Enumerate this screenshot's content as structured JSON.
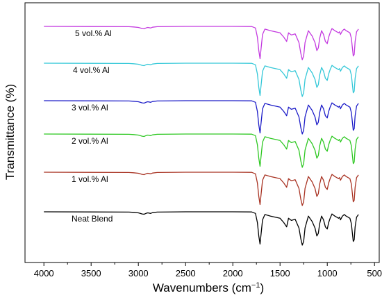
{
  "chart_data": {
    "type": "line",
    "title": "",
    "xlabel": "Wavenumbers (cm",
    "xlabel_superscript": "−1",
    "xlabel_suffix": ")",
    "ylabel": "Transmittance (%)",
    "xlim": [
      4200,
      450
    ],
    "x_reversed": true,
    "x_ticks": [
      4000,
      3500,
      3000,
      2500,
      2000,
      1500,
      1000,
      500
    ],
    "y_ticks_shown": false,
    "grid": false,
    "legend": "inline labels above each curve",
    "offset_between_series": 1,
    "x": [
      4000,
      3100,
      3050,
      3000,
      2980,
      2960,
      2940,
      2920,
      2900,
      2870,
      2850,
      2800,
      2500,
      2000,
      1800,
      1760,
      1740,
      1725,
      1712,
      1700,
      1685,
      1660,
      1600,
      1550,
      1500,
      1460,
      1430,
      1410,
      1380,
      1340,
      1300,
      1280,
      1265,
      1250,
      1235,
      1200,
      1160,
      1130,
      1110,
      1095,
      1080,
      1060,
      1040,
      1020,
      1000,
      985,
      970,
      950,
      920,
      900,
      880,
      870,
      860,
      840,
      820,
      800,
      780,
      760,
      745,
      735,
      725,
      715,
      705,
      690,
      670
    ],
    "series": [
      {
        "name": "Neat Blend",
        "color": "#000000",
        "values": [
          100,
          99.5,
          99,
          98,
          97,
          96,
          95.5,
          97,
          98,
          97,
          98.5,
          99.5,
          100,
          100,
          99.8,
          97,
          80,
          55,
          40,
          60,
          85,
          95,
          92,
          90,
          88,
          80,
          72,
          88,
          84,
          86,
          70,
          50,
          38,
          45,
          70,
          92,
          82,
          70,
          55,
          60,
          78,
          92,
          85,
          72,
          68,
          80,
          88,
          96,
          92,
          90,
          88,
          90,
          85,
          92,
          95,
          92,
          90,
          88,
          78,
          62,
          45,
          48,
          72,
          90,
          95
        ]
      },
      {
        "name": "1 vol.% Al",
        "color": "#a83222",
        "values": [
          100,
          99.5,
          99,
          98,
          97,
          96,
          95.5,
          97,
          98,
          97,
          98.5,
          99.5,
          100,
          100,
          99.8,
          97,
          80,
          55,
          40,
          60,
          85,
          95,
          92,
          90,
          88,
          80,
          72,
          88,
          84,
          86,
          70,
          50,
          38,
          45,
          70,
          92,
          82,
          70,
          55,
          60,
          78,
          92,
          85,
          72,
          68,
          80,
          88,
          96,
          92,
          90,
          88,
          90,
          85,
          92,
          95,
          92,
          90,
          88,
          78,
          62,
          45,
          48,
          72,
          90,
          95
        ]
      },
      {
        "name": "2 vol.% Al",
        "color": "#2ec822",
        "values": [
          100,
          99.5,
          99,
          98,
          97,
          96,
          95.5,
          97,
          98,
          97,
          98.5,
          99.5,
          100,
          100,
          99.8,
          97,
          80,
          55,
          40,
          60,
          85,
          95,
          92,
          90,
          88,
          80,
          72,
          88,
          84,
          86,
          70,
          50,
          38,
          45,
          70,
          92,
          82,
          70,
          55,
          60,
          78,
          92,
          85,
          72,
          68,
          80,
          88,
          96,
          92,
          90,
          88,
          90,
          85,
          92,
          95,
          92,
          90,
          88,
          78,
          62,
          45,
          48,
          72,
          90,
          95
        ]
      },
      {
        "name": "3 vol.% Al",
        "color": "#1c1cc8",
        "values": [
          100,
          99.5,
          99,
          98,
          97,
          96,
          95.5,
          97,
          98,
          97,
          98.5,
          99.5,
          100,
          100,
          99.8,
          97,
          80,
          55,
          40,
          60,
          85,
          95,
          92,
          90,
          88,
          80,
          72,
          88,
          84,
          86,
          70,
          50,
          38,
          45,
          70,
          92,
          82,
          70,
          55,
          60,
          78,
          92,
          85,
          72,
          68,
          80,
          88,
          96,
          92,
          90,
          88,
          90,
          85,
          92,
          95,
          92,
          90,
          88,
          78,
          62,
          45,
          48,
          72,
          90,
          95
        ]
      },
      {
        "name": "4 vol.% Al",
        "color": "#34c8d8",
        "values": [
          100,
          99.5,
          99,
          98,
          97,
          96,
          95.5,
          97,
          98,
          97,
          98.5,
          99.5,
          100,
          100,
          99.8,
          97,
          80,
          55,
          40,
          60,
          85,
          95,
          92,
          90,
          88,
          80,
          72,
          88,
          84,
          86,
          70,
          50,
          38,
          45,
          70,
          92,
          82,
          70,
          55,
          60,
          78,
          92,
          85,
          72,
          68,
          80,
          88,
          96,
          92,
          90,
          88,
          90,
          85,
          92,
          95,
          92,
          90,
          88,
          78,
          62,
          45,
          48,
          72,
          90,
          95
        ]
      },
      {
        "name": "5 vol.% Al",
        "color": "#c43ae0",
        "values": [
          100,
          99.5,
          99,
          98,
          97,
          96,
          95.5,
          97,
          98,
          97,
          98.5,
          99.5,
          100,
          100,
          99.8,
          97,
          80,
          55,
          40,
          60,
          85,
          95,
          92,
          90,
          88,
          80,
          72,
          88,
          84,
          86,
          70,
          50,
          38,
          45,
          70,
          92,
          82,
          70,
          55,
          60,
          78,
          92,
          85,
          72,
          68,
          80,
          88,
          96,
          92,
          90,
          88,
          90,
          85,
          92,
          95,
          92,
          90,
          88,
          78,
          62,
          45,
          48,
          72,
          90,
          95
        ]
      }
    ]
  }
}
